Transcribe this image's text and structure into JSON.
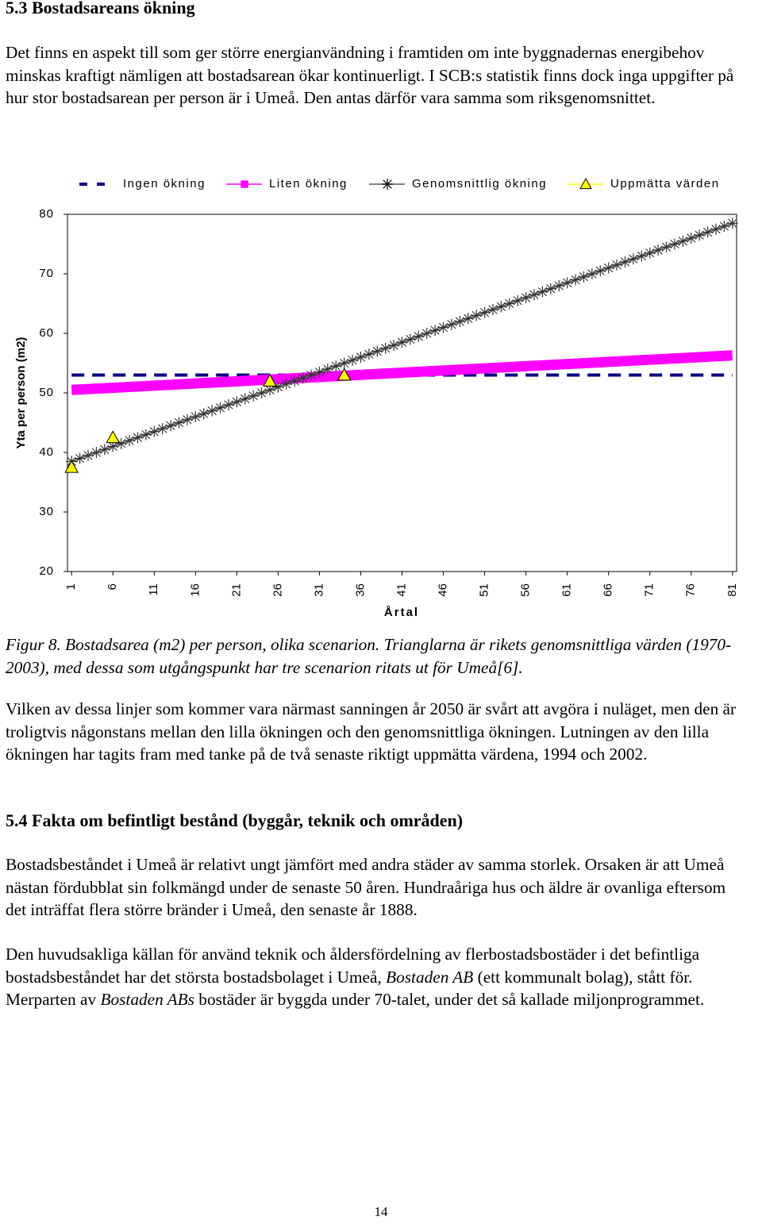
{
  "heading1": "5.3 Bostadsareans ökning",
  "paragraph1": "Det finns en aspekt till som ger större energianvändning i framtiden om inte byggnadernas energibehov minskas kraftigt nämligen att bostadsarean ökar kontinuerligt. I SCB:s statistik finns dock inga uppgifter på hur stor bostadsarean per person är i Umeå. Den antas därför vara samma som riksgenomsnittet.",
  "chart_data": {
    "type": "line",
    "x_label": "Årtal",
    "y_label": "Yta per person (m2)",
    "xlim": [
      0.5,
      81.5
    ],
    "xticks": [
      1,
      6,
      11,
      16,
      21,
      26,
      31,
      36,
      41,
      46,
      51,
      56,
      61,
      66,
      71,
      76,
      81
    ],
    "ylim": [
      20,
      80
    ],
    "yticks": [
      20,
      30,
      40,
      50,
      60,
      70,
      80
    ],
    "legend": "top",
    "series": [
      {
        "name": "Ingen ökning",
        "color": "#000080",
        "line_style": "dashed",
        "marker": "none",
        "x": [
          1,
          81
        ],
        "values": [
          53,
          53
        ]
      },
      {
        "name": "Liten ökning",
        "color": "#ff00ff",
        "line_style": "solid",
        "marker": "square",
        "x": [
          1,
          81
        ],
        "values": [
          50.5,
          56.3
        ]
      },
      {
        "name": "Genomsnittlig ökning",
        "color": "#555555",
        "line_style": "solid",
        "marker": "star",
        "x": [
          1,
          2,
          3,
          4,
          5,
          6,
          7,
          8,
          9,
          10,
          11,
          12,
          13,
          14,
          15,
          16,
          17,
          18,
          19,
          20,
          21,
          22,
          23,
          24,
          25,
          26,
          27,
          28,
          29,
          30,
          31,
          32,
          33,
          34,
          35,
          36,
          37,
          38,
          39,
          40,
          41,
          42,
          43,
          44,
          45,
          46,
          47,
          48,
          49,
          50,
          51,
          52,
          53,
          54,
          55,
          56,
          57,
          58,
          59,
          60,
          61,
          62,
          63,
          64,
          65,
          66,
          67,
          68,
          69,
          70,
          71,
          72,
          73,
          74,
          75,
          76,
          77,
          78,
          79,
          80,
          81
        ],
        "values": [
          38.5,
          39,
          39.5,
          40,
          40.5,
          41,
          41.5,
          42,
          42.5,
          43,
          43.5,
          44,
          44.5,
          45,
          45.5,
          46,
          46.5,
          47,
          47.5,
          48,
          48.5,
          49,
          49.5,
          50,
          50.5,
          51,
          51.5,
          52,
          52.5,
          53,
          53.5,
          54,
          54.5,
          55,
          55.5,
          56,
          56.5,
          57,
          57.5,
          58,
          58.5,
          59,
          59.5,
          60,
          60.5,
          61,
          61.5,
          62,
          62.5,
          63,
          63.5,
          64,
          64.5,
          65,
          65.5,
          66,
          66.5,
          67,
          67.5,
          68,
          68.5,
          69,
          69.5,
          70,
          70.5,
          71,
          71.5,
          72,
          72.5,
          73,
          73.5,
          74,
          74.5,
          75,
          75.5,
          76,
          76.5,
          77,
          77.5,
          78,
          78.5
        ]
      },
      {
        "name": "Uppmätta värden",
        "color": "#ffff00",
        "line_style": "none",
        "marker": "triangle",
        "x": [
          1,
          6,
          25,
          34
        ],
        "values": [
          37.5,
          42.5,
          52,
          53
        ]
      }
    ]
  },
  "caption": "Figur 8. Bostadsarea (m2) per person, olika scenarion. Trianglarna är rikets genomsnittliga värden (1970-2003), med dessa som utgångspunkt har tre scenarion ritats ut för Umeå[6].",
  "paragraph2": "Vilken av dessa linjer som kommer vara närmast sanningen år 2050 är svårt att avgöra i nuläget, men den är troligtvis någonstans mellan den lilla ökningen och den genomsnittliga ökningen. Lutningen av den lilla ökningen har tagits fram med tanke på de två senaste riktigt uppmätta värdena, 1994 och 2002.",
  "heading2": "5.4 Fakta om befintligt bestånd (byggår, teknik och områden)",
  "paragraph3": "Bostadsbeståndet i Umeå är relativt ungt jämfört med andra städer av samma storlek. Orsaken är att Umeå nästan fördubblat sin folkmängd under de senaste 50 åren. Hundraåriga hus och äldre är ovanliga eftersom det inträffat flera större bränder i Umeå, den senaste år 1888.",
  "paragraph4": [
    "Den huvudsakliga källan för använd teknik och åldersfördelning av flerbostadsbostäder i det befintliga bostadsbeståndet har det största bostadsbolaget i Umeå, ",
    "Bostaden AB",
    " (ett kommunalt bolag), stått för. Merparten av ",
    "Bostaden ABs",
    " bostäder är byggda under 70-talet, under det så kallade miljonprogrammet."
  ],
  "page_number": "14"
}
